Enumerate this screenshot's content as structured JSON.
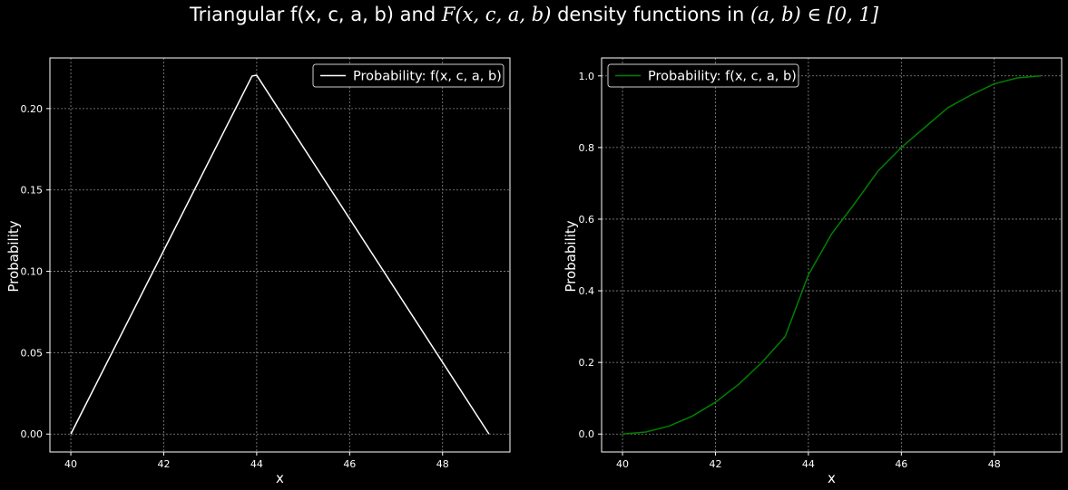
{
  "figure": {
    "title_prefix": "Triangular f(x, c, a, b) and ",
    "title_math1": "F(x, c, a, b)",
    "title_middle": " density functions in ",
    "title_math2": "(a, b) ∈ [0, 1]"
  },
  "chart_data": [
    {
      "type": "line",
      "title": "",
      "xlabel": "x",
      "ylabel": "Probability",
      "xlim": [
        39.55,
        49.45
      ],
      "ylim": [
        -0.011,
        0.2311
      ],
      "xticks": [
        40,
        42,
        44,
        46,
        48
      ],
      "yticks": [
        0.0,
        0.05,
        0.1,
        0.15,
        0.2
      ],
      "ytick_labels": [
        "0.00",
        "0.05",
        "0.10",
        "0.15",
        "0.20"
      ],
      "grid": true,
      "legend": "top-right",
      "series": [
        {
          "name": "Probability: f(x, c, a, b)",
          "color": "#ffffff",
          "x": [
            40,
            43.9,
            44.0,
            49
          ],
          "y": [
            0.0,
            0.22,
            0.2205,
            0.0
          ]
        }
      ]
    },
    {
      "type": "line",
      "title": "",
      "xlabel": "x",
      "ylabel": "Probability",
      "xlim": [
        39.55,
        49.45
      ],
      "ylim": [
        -0.05,
        1.05
      ],
      "xticks": [
        40,
        42,
        44,
        46,
        48
      ],
      "yticks": [
        0.0,
        0.2,
        0.4,
        0.6,
        0.8,
        1.0
      ],
      "ytick_labels": [
        "0.0",
        "0.2",
        "0.4",
        "0.6",
        "0.8",
        "1.0"
      ],
      "grid": true,
      "legend": "top-left",
      "series": [
        {
          "name": "Probability: f(x, c, a, b)",
          "color": "#008000",
          "x": [
            40,
            40.5,
            41,
            41.5,
            42,
            42.5,
            43,
            43.5,
            44,
            44.5,
            45,
            45.5,
            46,
            46.5,
            47,
            47.5,
            48,
            48.5,
            49
          ],
          "y": [
            0.0,
            0.0056,
            0.0222,
            0.05,
            0.0889,
            0.1389,
            0.2,
            0.2722,
            0.4445,
            0.5589,
            0.6445,
            0.7345,
            0.8,
            0.8556,
            0.9111,
            0.9467,
            0.9778,
            0.9944,
            1.0
          ]
        }
      ]
    }
  ]
}
